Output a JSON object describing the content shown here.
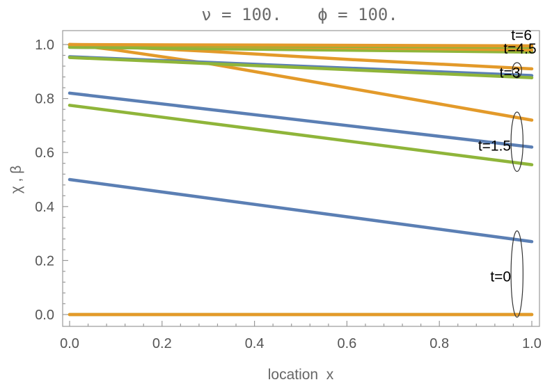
{
  "chart_data": {
    "type": "line",
    "title_left": "ν = 100.",
    "title_right": "ϕ = 100.",
    "xlabel": "location  x",
    "ylabel": "χ , β",
    "xlim": [
      0,
      1
    ],
    "ylim": [
      0,
      1
    ],
    "x_ticks": [
      "0.0",
      "0.2",
      "0.4",
      "0.6",
      "0.8",
      "1.0"
    ],
    "y_ticks": [
      "0.0",
      "0.2",
      "0.4",
      "0.6",
      "0.8",
      "1.0"
    ],
    "grid": false,
    "colors": {
      "blue": "#5b7fb4",
      "orange": "#e39a2a",
      "green": "#8fb53a"
    },
    "series": [
      {
        "color": "blue",
        "group": "t=0",
        "x": [
          0,
          1
        ],
        "y": [
          0.5,
          0.27
        ]
      },
      {
        "color": "green",
        "group": "t=0",
        "x": [
          0,
          1
        ],
        "y": [
          0.0,
          0.0
        ]
      },
      {
        "color": "orange",
        "group": "t=0",
        "x": [
          0,
          1
        ],
        "y": [
          0.0,
          0.0
        ]
      },
      {
        "color": "blue",
        "group": "t=1.5",
        "x": [
          0,
          1
        ],
        "y": [
          0.82,
          0.62
        ]
      },
      {
        "color": "green",
        "group": "t=1.5",
        "x": [
          0,
          1
        ],
        "y": [
          0.775,
          0.555
        ]
      },
      {
        "color": "orange",
        "group": "t=1.5",
        "x": [
          0,
          0.1,
          0.3,
          0.5,
          0.7,
          0.9,
          1
        ],
        "y": [
          1.0,
          0.98,
          0.93,
          0.87,
          0.81,
          0.75,
          0.72
        ]
      },
      {
        "color": "blue",
        "group": "t=3",
        "x": [
          0,
          1
        ],
        "y": [
          0.955,
          0.885
        ]
      },
      {
        "color": "green",
        "group": "t=3",
        "x": [
          0,
          1
        ],
        "y": [
          0.952,
          0.877
        ]
      },
      {
        "color": "orange",
        "group": "t=3",
        "x": [
          0,
          0.3,
          0.6,
          1
        ],
        "y": [
          1.0,
          0.975,
          0.945,
          0.91
        ]
      },
      {
        "color": "blue",
        "group": "t=4.5",
        "x": [
          0,
          1
        ],
        "y": [
          0.99,
          0.975
        ]
      },
      {
        "color": "green",
        "group": "t=4.5",
        "x": [
          0,
          1
        ],
        "y": [
          0.99,
          0.972
        ]
      },
      {
        "color": "orange",
        "group": "t=4.5",
        "x": [
          0,
          1
        ],
        "y": [
          1.0,
          0.98
        ]
      },
      {
        "color": "blue",
        "group": "t=6",
        "x": [
          0,
          1
        ],
        "y": [
          0.998,
          0.993
        ]
      },
      {
        "color": "green",
        "group": "t=6",
        "x": [
          0,
          1
        ],
        "y": [
          0.998,
          0.99
        ]
      },
      {
        "color": "orange",
        "group": "t=6",
        "x": [
          0,
          1
        ],
        "y": [
          1.0,
          0.995
        ]
      }
    ],
    "annotations": [
      {
        "text": "t=6",
        "x": 1.0,
        "y": 1.035
      },
      {
        "text": "t=4.5",
        "x": 1.01,
        "y": 0.985
      },
      {
        "text": "t=3",
        "x": 0.975,
        "y": 0.896
      },
      {
        "text": "t=1.5",
        "x": 0.955,
        "y": 0.625
      },
      {
        "text": "t=0",
        "x": 0.955,
        "y": 0.14
      }
    ],
    "ellipses": [
      {
        "group": "t=3",
        "cx": 0.968,
        "cy": 0.905,
        "rx": 0.01,
        "ry": 0.028
      },
      {
        "group": "t=1.5",
        "cx": 0.968,
        "cy": 0.64,
        "rx": 0.013,
        "ry": 0.11
      },
      {
        "group": "t=0",
        "cx": 0.968,
        "cy": 0.15,
        "rx": 0.013,
        "ry": 0.16
      }
    ]
  }
}
